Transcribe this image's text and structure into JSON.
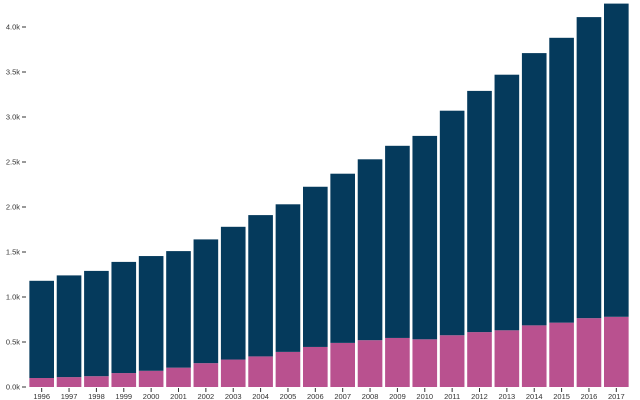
{
  "chart_data": {
    "type": "bar",
    "stacked": true,
    "title": "",
    "xlabel": "",
    "ylabel": "",
    "categories": [
      "1996",
      "1997",
      "1998",
      "1999",
      "2000",
      "2001",
      "2002",
      "2003",
      "2004",
      "2005",
      "2006",
      "2007",
      "2008",
      "2009",
      "2010",
      "2011",
      "2012",
      "2013",
      "2014",
      "2015",
      "2016",
      "2017"
    ],
    "series": [
      {
        "color": "#b9518f",
        "values": [
          100,
          110,
          120,
          155,
          180,
          215,
          265,
          305,
          340,
          390,
          445,
          490,
          520,
          545,
          530,
          575,
          610,
          630,
          685,
          715,
          765,
          780
        ]
      },
      {
        "color": "#053a5c",
        "values": [
          1080,
          1130,
          1170,
          1235,
          1275,
          1295,
          1375,
          1475,
          1570,
          1640,
          1780,
          1880,
          2010,
          2135,
          2260,
          2495,
          2680,
          2840,
          3025,
          3165,
          3345,
          3480
        ]
      }
    ],
    "ylim": [
      0,
      4300
    ],
    "y_ticks": [
      0,
      500,
      1000,
      1500,
      2000,
      2500,
      3000,
      3500,
      4000
    ],
    "y_tick_labels": [
      "0.0k",
      "0.5k",
      "1.0k",
      "1.5k",
      "2.0k",
      "2.5k",
      "3.0k",
      "3.5k",
      "4.0k"
    ],
    "grid": false,
    "legend": "none"
  }
}
